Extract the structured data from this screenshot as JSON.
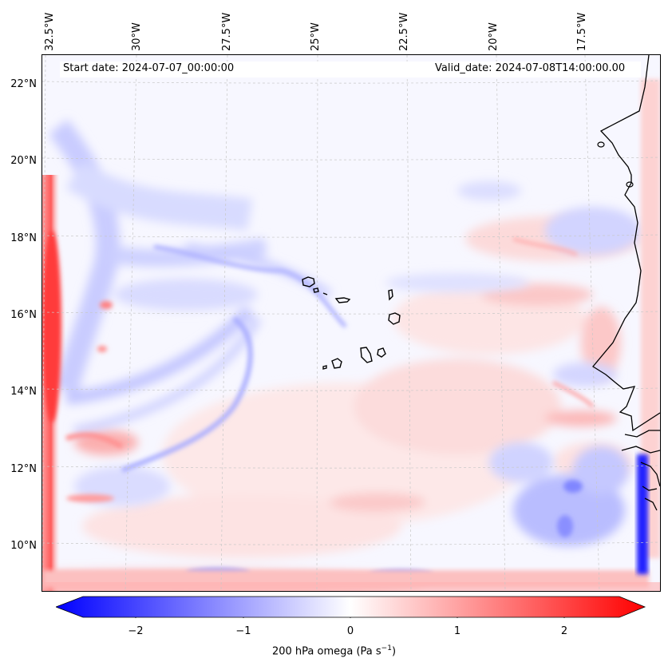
{
  "map": {
    "start_date_text": "Start date: 2024-07-07_00:00:00",
    "valid_date_text": "Valid_date: 2024-07-08T14:00:00.00",
    "longitude_labels": [
      "32.5°W",
      "30°W",
      "27.5°W",
      "25°W",
      "22.5°W",
      "20°W",
      "17.5°W"
    ],
    "latitude_labels": [
      "22°N",
      "20°N",
      "18°N",
      "16°N",
      "14°N",
      "12°N",
      "10°N"
    ],
    "colorbar": {
      "title_prefix": "200 hPa omega (Pa s",
      "title_exponent": "−1",
      "title_suffix": ")",
      "tick_labels": [
        "−2",
        "−1",
        "0",
        "1",
        "2"
      ],
      "range": [
        -2.75,
        2.75
      ],
      "colormap": "bwr",
      "extend": "both"
    },
    "colors": {
      "negative": "#0000ff",
      "neutral": "#ffffff",
      "positive": "#ff0000",
      "coastline": "#000000"
    }
  }
}
